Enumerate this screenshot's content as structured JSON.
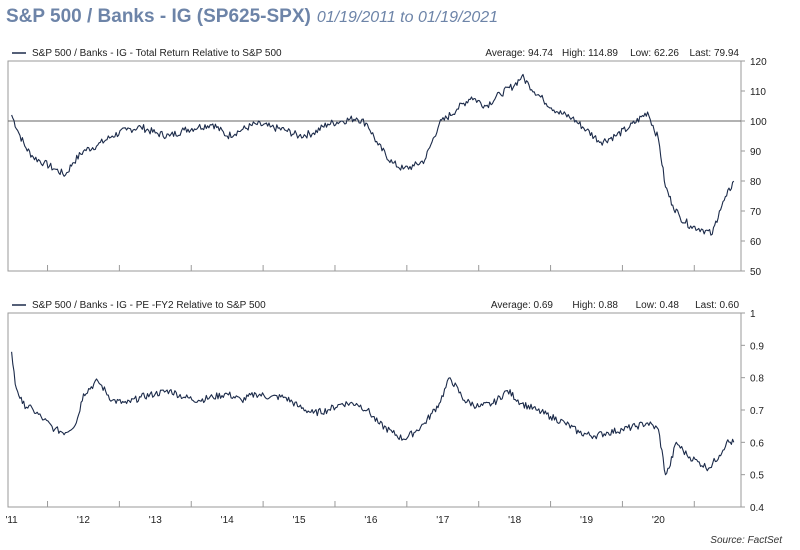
{
  "title": "S&P 500 / Banks - IG (SP625-SPX)",
  "date_range": "01/19/2011 to 01/19/2021",
  "source": "Source: FactSet",
  "colors": {
    "line": "#1c2b4a",
    "title": "#6d84a8",
    "frame": "#9a9a9a",
    "refline": "#666666"
  },
  "chart_data": [
    {
      "type": "line",
      "series": [
        {
          "name": "S&P 500 / Banks - IG - Total Return Relative to S&P 500",
          "x": [
            2011.0,
            2011.1,
            2011.2,
            2011.3,
            2011.45,
            2011.6,
            2011.75,
            2011.85,
            2012.0,
            2012.2,
            2012.4,
            2012.6,
            2012.8,
            2013.0,
            2013.2,
            2013.4,
            2013.6,
            2013.8,
            2014.0,
            2014.2,
            2014.4,
            2014.6,
            2014.8,
            2015.0,
            2015.2,
            2015.4,
            2015.6,
            2015.8,
            2015.95,
            2016.1,
            2016.3,
            2016.45,
            2016.6,
            2016.75,
            2016.85,
            2016.95,
            2017.2,
            2017.4,
            2017.6,
            2017.8,
            2018.0,
            2018.1,
            2018.2,
            2018.4,
            2018.6,
            2018.8,
            2019.0,
            2019.2,
            2019.4,
            2019.6,
            2019.85,
            2020.0,
            2020.1,
            2020.2,
            2020.3,
            2020.45,
            2020.6,
            2020.75,
            2020.85,
            2020.95,
            2021.05
          ],
          "values": [
            102,
            96,
            91,
            88,
            86,
            84,
            82,
            86,
            90,
            92,
            95,
            97,
            98,
            96,
            95,
            97,
            98,
            99,
            95,
            97,
            99,
            98,
            97,
            95,
            96,
            99,
            100,
            101,
            99,
            92,
            86,
            84,
            85,
            87,
            93,
            99,
            104,
            108,
            105,
            109,
            112,
            114.89,
            112,
            107,
            103,
            101,
            97,
            93,
            95,
            98,
            103,
            94,
            78,
            72,
            68,
            65,
            64,
            62.26,
            70,
            75,
            79.94
          ]
        }
      ],
      "stats": {
        "average_label": "Average: 94.74",
        "high_label": "High: 114.89",
        "low_label": "Low: 62.26",
        "last_label": "Last: 79.94"
      },
      "ylim": [
        50,
        120
      ],
      "yticks": [
        "120",
        "110",
        "100",
        "90",
        "80",
        "70",
        "60",
        "50"
      ],
      "reference_line": 100,
      "xlabel": "",
      "ylabel": ""
    },
    {
      "type": "line",
      "series": [
        {
          "name": "S&P 500 / Banks - IG - PE -FY2 Relative to S&P 500",
          "x": [
            2011.0,
            2011.05,
            2011.15,
            2011.3,
            2011.45,
            2011.6,
            2011.75,
            2011.9,
            2012.0,
            2012.2,
            2012.4,
            2012.6,
            2012.8,
            2013.0,
            2013.2,
            2013.4,
            2013.6,
            2013.8,
            2014.0,
            2014.2,
            2014.4,
            2014.6,
            2014.8,
            2015.0,
            2015.2,
            2015.4,
            2015.6,
            2015.8,
            2015.95,
            2016.1,
            2016.3,
            2016.45,
            2016.6,
            2016.75,
            2016.85,
            2016.95,
            2017.1,
            2017.3,
            2017.5,
            2017.7,
            2017.9,
            2018.1,
            2018.3,
            2018.5,
            2018.7,
            2018.9,
            2019.1,
            2019.3,
            2019.5,
            2019.7,
            2019.85,
            2020.0,
            2020.1,
            2020.15,
            2020.25,
            2020.4,
            2020.55,
            2020.7,
            2020.85,
            2020.95,
            2021.05
          ],
          "values": [
            0.88,
            0.78,
            0.72,
            0.7,
            0.67,
            0.64,
            0.63,
            0.66,
            0.75,
            0.79,
            0.73,
            0.72,
            0.74,
            0.75,
            0.76,
            0.74,
            0.73,
            0.74,
            0.75,
            0.73,
            0.75,
            0.74,
            0.74,
            0.71,
            0.69,
            0.7,
            0.72,
            0.72,
            0.7,
            0.66,
            0.63,
            0.61,
            0.63,
            0.66,
            0.69,
            0.72,
            0.8,
            0.73,
            0.71,
            0.72,
            0.76,
            0.72,
            0.7,
            0.68,
            0.66,
            0.63,
            0.62,
            0.63,
            0.64,
            0.65,
            0.66,
            0.64,
            0.5,
            0.52,
            0.6,
            0.56,
            0.54,
            0.52,
            0.56,
            0.6,
            0.6
          ]
        }
      ],
      "stats": {
        "average_label": "Average: 0.69",
        "high_label": "High: 0.88",
        "low_label": "Low: 0.48",
        "last_label": "Last: 0.60"
      },
      "ylim": [
        0.4,
        1
      ],
      "yticks": [
        "1",
        "0.9",
        "0.8",
        "0.7",
        "0.6",
        "0.5",
        "0.4"
      ],
      "xlabel": "",
      "ylabel": ""
    }
  ],
  "x_axis": {
    "range": [
      2010.95,
      2021.15
    ],
    "ticks": [
      2011,
      2012,
      2013,
      2014,
      2015,
      2016,
      2017,
      2018,
      2019,
      2020
    ],
    "tick_labels": [
      "'11",
      "'12",
      "'13",
      "'14",
      "'15",
      "'16",
      "'17",
      "'18",
      "'19",
      "'20"
    ]
  }
}
